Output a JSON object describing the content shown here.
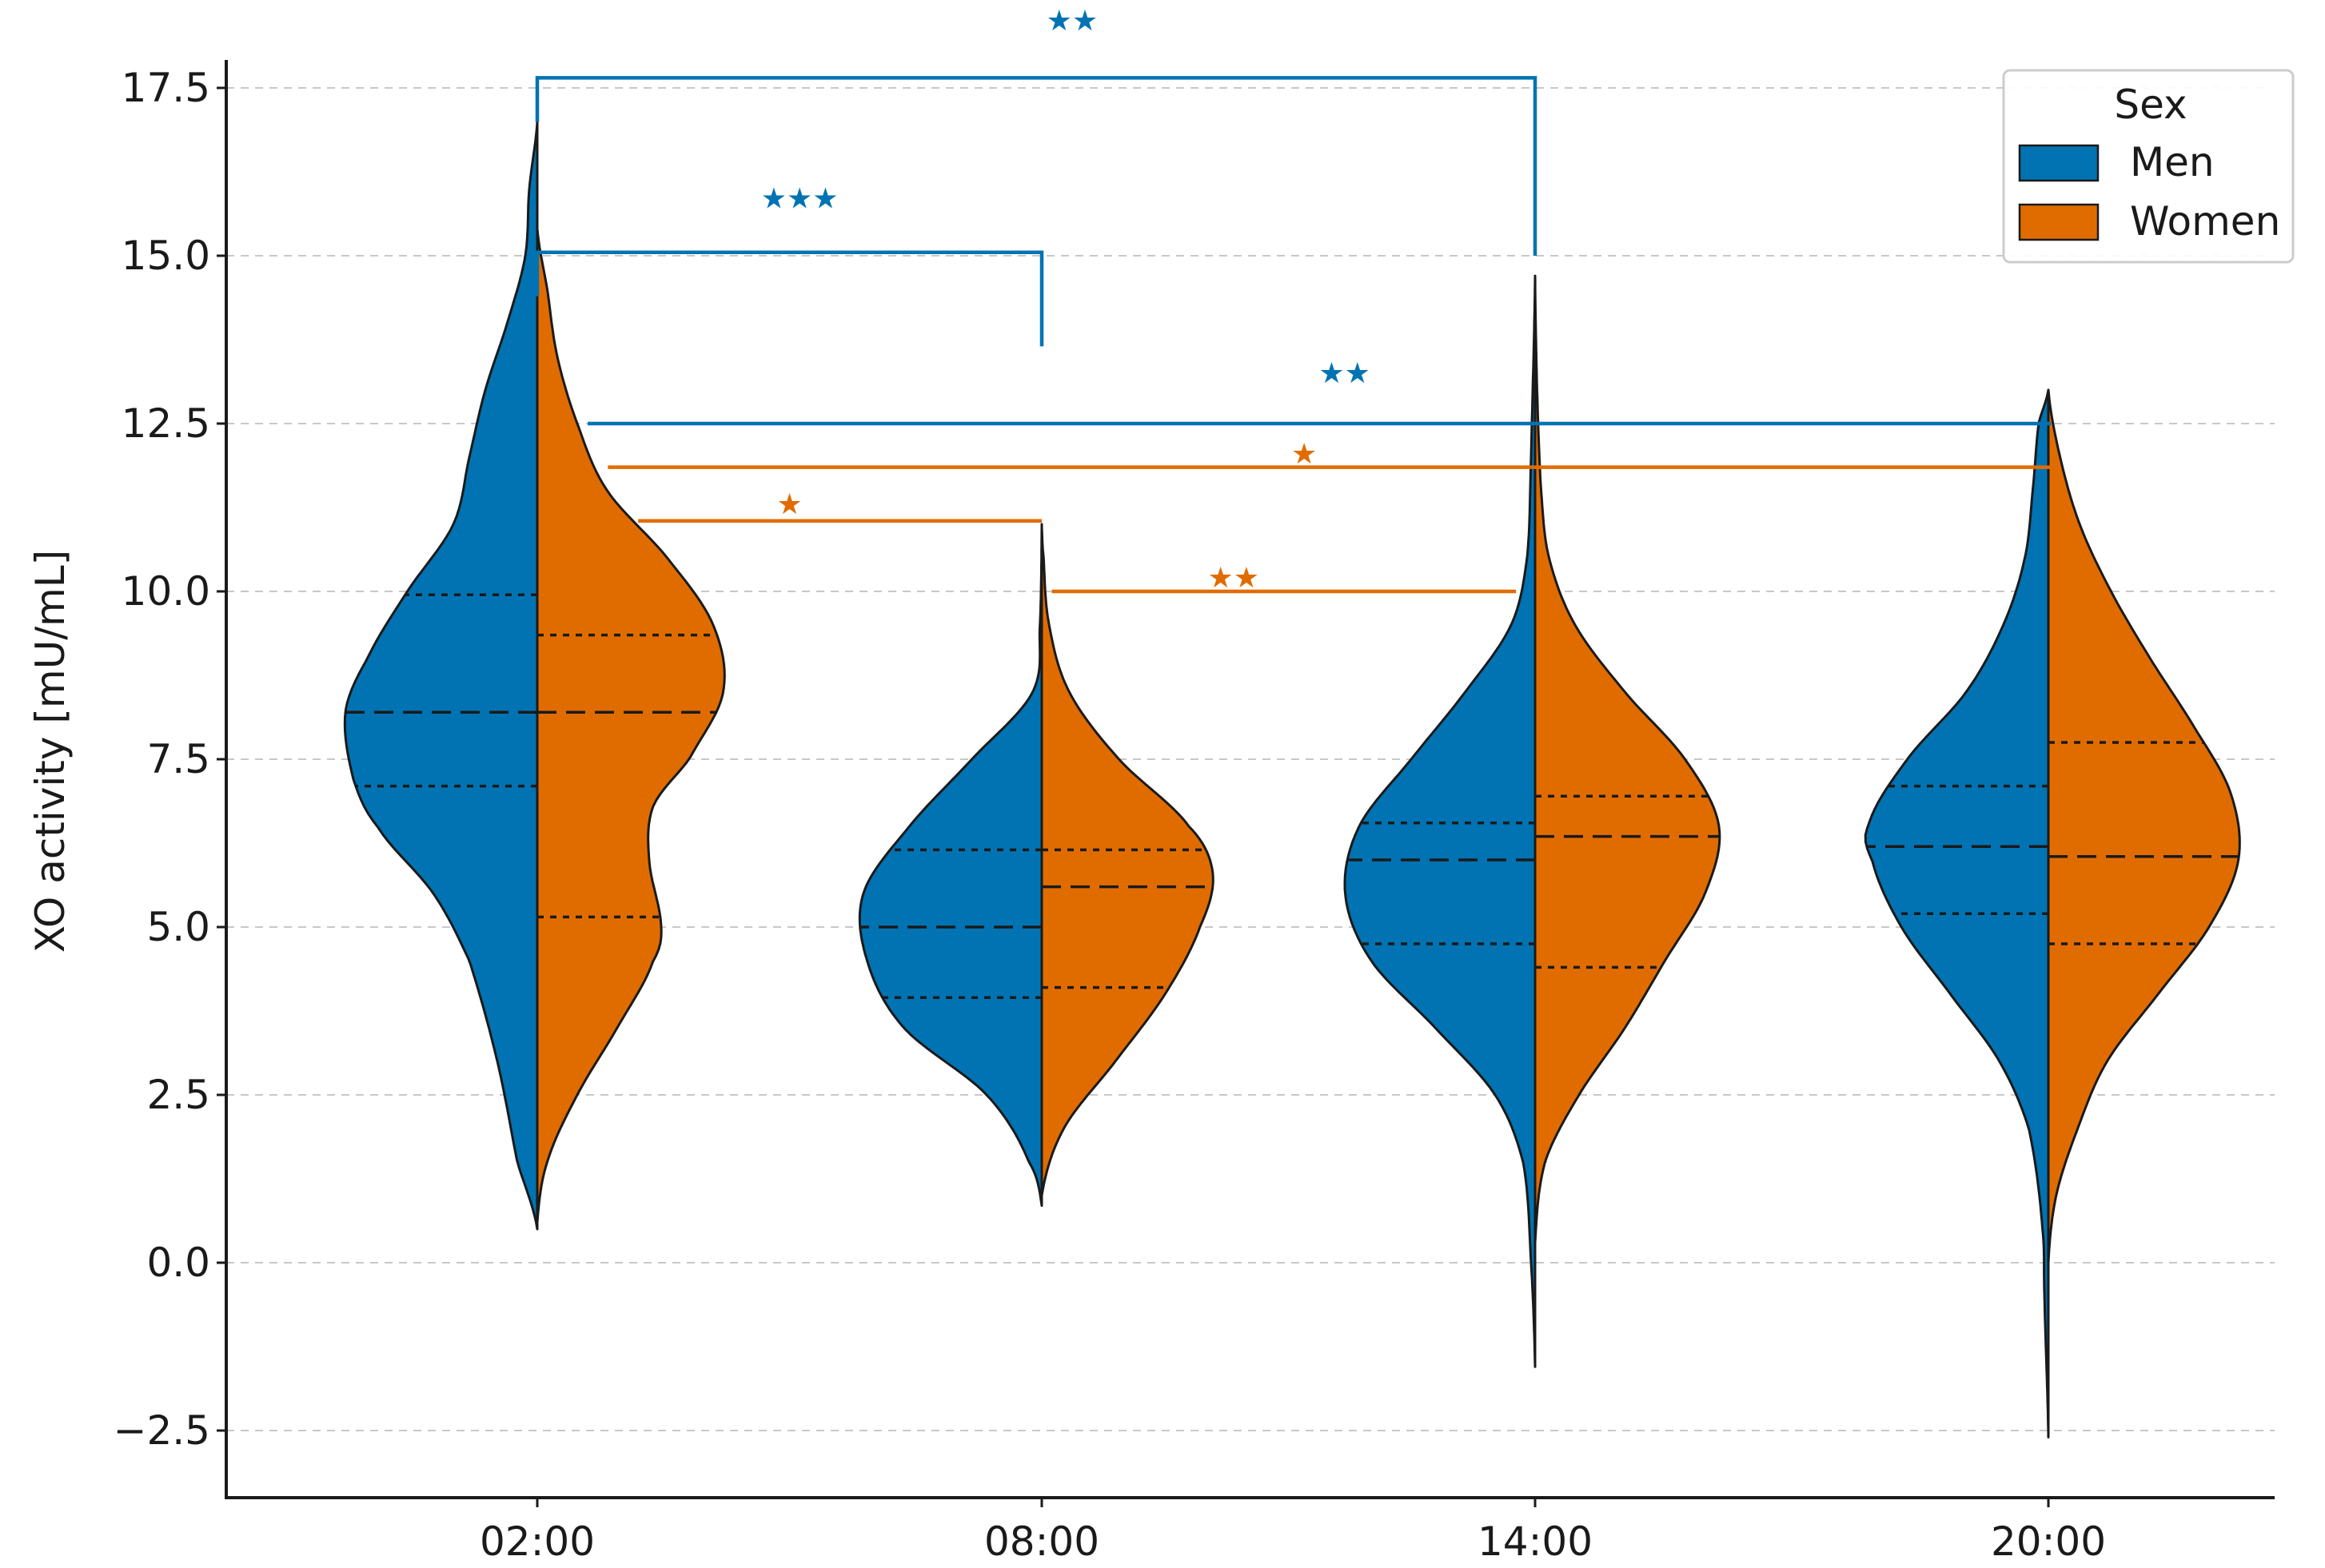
{
  "chart_data": {
    "type": "violin",
    "subtype": "split",
    "title": "",
    "xlabel": "",
    "ylabel": "XO activity [mU/mL]",
    "categories": [
      "02:00",
      "08:00",
      "14:00",
      "20:00"
    ],
    "ylim": [
      -3.5,
      18.0
    ],
    "yticks": [
      -2.5,
      0.0,
      2.5,
      5.0,
      7.5,
      10.0,
      12.5,
      15.0,
      17.5
    ],
    "ytick_labels": [
      "−2.5",
      "0.0",
      "2.5",
      "5.0",
      "7.5",
      "10.0",
      "12.5",
      "15.0",
      "17.5"
    ],
    "grid": "horizontal dashed",
    "legend": {
      "title": "Sex",
      "position": "top-right",
      "entries": [
        {
          "label": "Men",
          "color": "#0173b2"
        },
        {
          "label": "Women",
          "color": "#e06c00"
        }
      ]
    },
    "series": [
      {
        "name": "Men",
        "color": "#0173b2",
        "violins": [
          {
            "category": "02:00",
            "min": 0.5,
            "max": 17.0,
            "q1": 7.1,
            "median": 8.2,
            "q3": 9.95,
            "profile": [
              [
                0.5,
                0.0
              ],
              [
                1.5,
                0.1
              ],
              [
                3.0,
                0.2
              ],
              [
                4.5,
                0.34
              ],
              [
                5.5,
                0.52
              ],
              [
                6.5,
                0.8
              ],
              [
                7.2,
                0.92
              ],
              [
                8.2,
                0.96
              ],
              [
                9.0,
                0.85
              ],
              [
                10.0,
                0.65
              ],
              [
                11.0,
                0.42
              ],
              [
                12.0,
                0.34
              ],
              [
                13.0,
                0.26
              ],
              [
                14.0,
                0.15
              ],
              [
                15.0,
                0.06
              ],
              [
                16.0,
                0.04
              ],
              [
                17.0,
                0.0
              ]
            ]
          },
          {
            "category": "08:00",
            "min": 0.85,
            "max": 11.0,
            "q1": 3.95,
            "median": 5.0,
            "q3": 6.15,
            "profile": [
              [
                0.85,
                0.0
              ],
              [
                1.5,
                0.07
              ],
              [
                2.5,
                0.3
              ],
              [
                3.5,
                0.75
              ],
              [
                4.5,
                0.95
              ],
              [
                5.5,
                0.97
              ],
              [
                6.5,
                0.72
              ],
              [
                7.5,
                0.38
              ],
              [
                8.5,
                0.05
              ],
              [
                9.5,
                0.01
              ],
              [
                11.0,
                0.0
              ]
            ]
          },
          {
            "category": "14:00",
            "min": -1.55,
            "max": 14.7,
            "q1": 4.75,
            "median": 6.0,
            "q3": 6.55,
            "profile": [
              [
                -1.55,
                0.0
              ],
              [
                0.0,
                0.02
              ],
              [
                1.5,
                0.06
              ],
              [
                2.5,
                0.2
              ],
              [
                3.5,
                0.5
              ],
              [
                4.5,
                0.82
              ],
              [
                5.5,
                0.95
              ],
              [
                6.5,
                0.88
              ],
              [
                7.5,
                0.62
              ],
              [
                8.5,
                0.35
              ],
              [
                9.5,
                0.12
              ],
              [
                10.5,
                0.04
              ],
              [
                12.0,
                0.02
              ],
              [
                14.7,
                0.0
              ]
            ]
          },
          {
            "category": "20:00",
            "min": -2.6,
            "max": 13.0,
            "q1": 5.2,
            "median": 6.2,
            "q3": 7.1,
            "profile": [
              [
                -2.6,
                0.0
              ],
              [
                -0.5,
                0.02
              ],
              [
                0.5,
                0.03
              ],
              [
                2.0,
                0.1
              ],
              [
                3.0,
                0.25
              ],
              [
                4.0,
                0.5
              ],
              [
                5.0,
                0.75
              ],
              [
                6.0,
                0.9
              ],
              [
                6.5,
                0.92
              ],
              [
                7.5,
                0.72
              ],
              [
                8.5,
                0.42
              ],
              [
                9.5,
                0.23
              ],
              [
                10.5,
                0.12
              ],
              [
                11.5,
                0.08
              ],
              [
                12.5,
                0.05
              ],
              [
                13.0,
                0.0
              ]
            ]
          }
        ]
      },
      {
        "name": "Women",
        "color": "#e06c00",
        "violins": [
          {
            "category": "02:00",
            "min": 0.6,
            "max": 15.4,
            "q1": 5.15,
            "median": 8.2,
            "q3": 9.35,
            "profile": [
              [
                0.6,
                0.0
              ],
              [
                1.5,
                0.05
              ],
              [
                2.5,
                0.2
              ],
              [
                3.5,
                0.4
              ],
              [
                4.5,
                0.58
              ],
              [
                5.0,
                0.62
              ],
              [
                6.0,
                0.56
              ],
              [
                6.8,
                0.58
              ],
              [
                7.5,
                0.76
              ],
              [
                8.5,
                0.93
              ],
              [
                9.5,
                0.88
              ],
              [
                10.5,
                0.65
              ],
              [
                11.5,
                0.35
              ],
              [
                12.5,
                0.2
              ],
              [
                13.5,
                0.1
              ],
              [
                14.5,
                0.05
              ],
              [
                15.4,
                0.0
              ]
            ]
          },
          {
            "category": "08:00",
            "min": 1.0,
            "max": 11.0,
            "q1": 4.1,
            "median": 5.6,
            "q3": 6.15,
            "profile": [
              [
                1.0,
                0.0
              ],
              [
                2.0,
                0.12
              ],
              [
                3.0,
                0.4
              ],
              [
                4.0,
                0.67
              ],
              [
                5.0,
                0.86
              ],
              [
                5.8,
                0.93
              ],
              [
                6.5,
                0.8
              ],
              [
                7.5,
                0.42
              ],
              [
                8.5,
                0.15
              ],
              [
                9.5,
                0.04
              ],
              [
                10.5,
                0.01
              ],
              [
                11.0,
                0.0
              ]
            ]
          },
          {
            "category": "14:00",
            "min": 0.3,
            "max": 14.7,
            "q1": 4.4,
            "median": 6.35,
            "q3": 6.95,
            "profile": [
              [
                0.3,
                0.0
              ],
              [
                1.5,
                0.05
              ],
              [
                2.5,
                0.22
              ],
              [
                3.5,
                0.45
              ],
              [
                4.5,
                0.65
              ],
              [
                5.5,
                0.85
              ],
              [
                6.5,
                0.92
              ],
              [
                7.5,
                0.75
              ],
              [
                8.5,
                0.45
              ],
              [
                9.5,
                0.2
              ],
              [
                10.5,
                0.07
              ],
              [
                11.5,
                0.03
              ],
              [
                13.0,
                0.01
              ],
              [
                14.7,
                0.0
              ]
            ]
          },
          {
            "category": "20:00",
            "min": 0.0,
            "max": 13.0,
            "q1": 4.75,
            "median": 6.05,
            "q3": 7.75,
            "profile": [
              [
                0.0,
                0.0
              ],
              [
                1.0,
                0.04
              ],
              [
                2.0,
                0.15
              ],
              [
                3.0,
                0.3
              ],
              [
                4.0,
                0.56
              ],
              [
                5.0,
                0.82
              ],
              [
                6.0,
                0.97
              ],
              [
                7.0,
                0.93
              ],
              [
                8.0,
                0.74
              ],
              [
                9.0,
                0.52
              ],
              [
                10.0,
                0.32
              ],
              [
                11.0,
                0.16
              ],
              [
                12.0,
                0.06
              ],
              [
                13.0,
                0.0
              ]
            ]
          }
        ]
      }
    ],
    "annotations": [
      {
        "type": "bracket",
        "series": "Men",
        "from": "02:00",
        "to": "14:00",
        "y": 17.65,
        "drop_to_y": 15.0,
        "stars": "★★",
        "star_y": 18.5,
        "star_x": 1.06
      },
      {
        "type": "bracket",
        "series": "Men",
        "from": "02:00",
        "to": "08:00",
        "y": 15.05,
        "drop_to_y": 13.65,
        "stars": "★★★",
        "star_y": 15.85,
        "star_x": 0.52
      },
      {
        "type": "line",
        "series": "Men",
        "from": 0.1,
        "to": 3.0,
        "y": 12.5,
        "stars": "★★",
        "star_y": 13.25,
        "star_x": 1.6
      },
      {
        "type": "line",
        "series": "Women",
        "from": 0.14,
        "to": 3.0,
        "y": 11.85,
        "stars": "★",
        "star_y": 12.05,
        "star_x": 1.52
      },
      {
        "type": "line",
        "series": "Women",
        "from": 0.2,
        "to": 1.0,
        "y": 11.05,
        "stars": "★",
        "star_y": 11.3,
        "star_x": 0.5
      },
      {
        "type": "line",
        "series": "Women",
        "from": 1.02,
        "to": 1.94,
        "y": 10.0,
        "stars": "★★",
        "star_y": 10.2,
        "star_x": 1.38
      }
    ]
  }
}
